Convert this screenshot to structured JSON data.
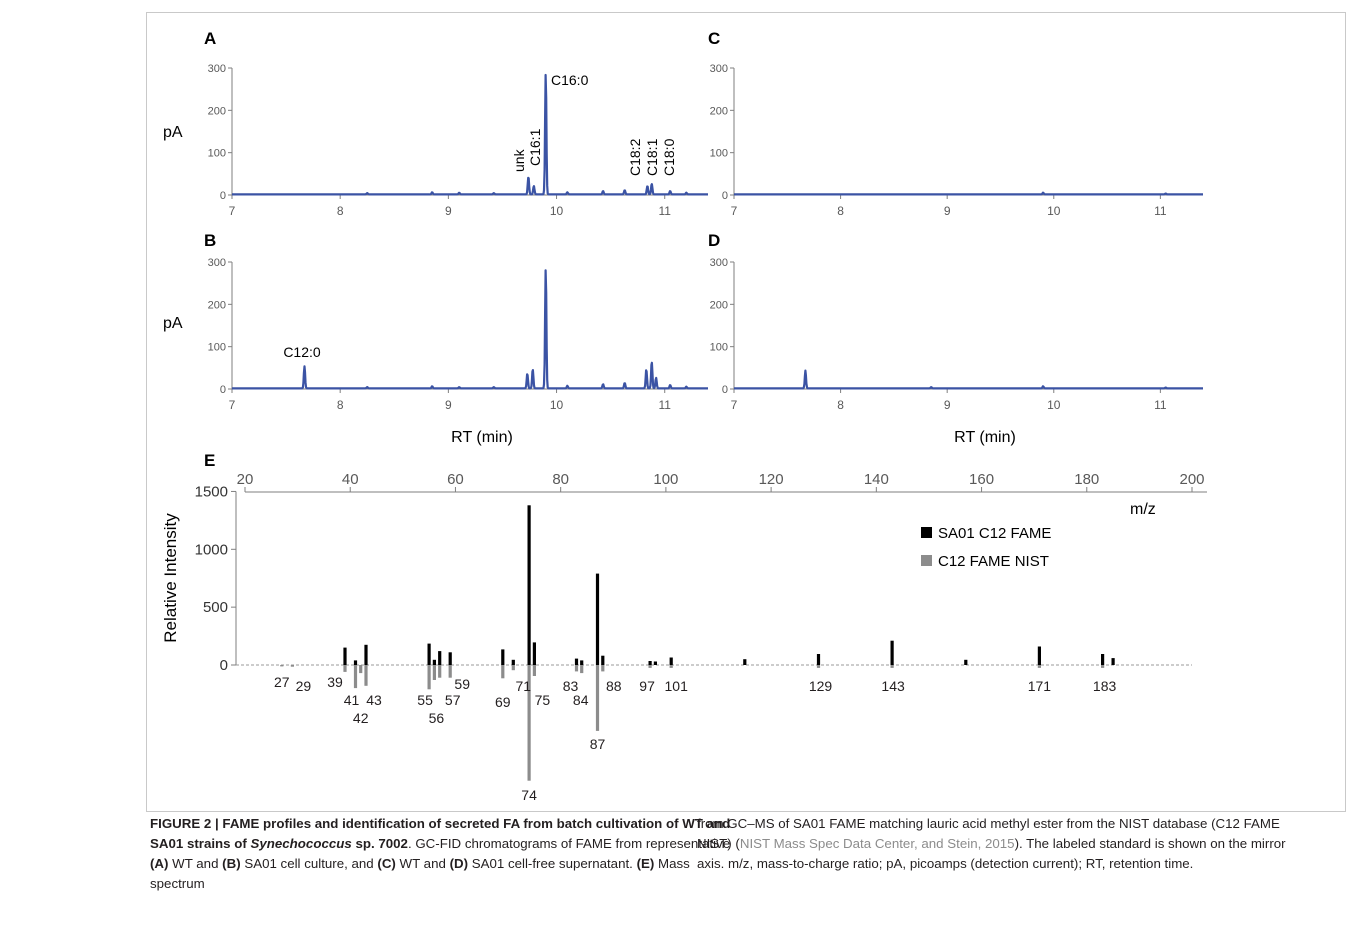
{
  "panels": {
    "A": {
      "letter": "A"
    },
    "B": {
      "letter": "B"
    },
    "C": {
      "letter": "C"
    },
    "D": {
      "letter": "D"
    },
    "E": {
      "letter": "E"
    }
  },
  "axis_labels": {
    "pA": "pA",
    "rt": "RT (min)",
    "relative_intensity": "Relative Intensity",
    "mz": "m/z"
  },
  "peak_labels": {
    "unk": "unk",
    "c16_1": "C16:1",
    "c16_0": "C16:0",
    "c18_2": "C18:2",
    "c18_1": "C18:1",
    "c18_0": "C18:0",
    "c12_0": "C12:0"
  },
  "colors": {
    "chromatogram": "#3b53a4",
    "sample_bars": "#000000",
    "nist_bars": "#8c8c8c",
    "axis": "#7f7f7f",
    "citation": "#8c8c8c"
  },
  "chart_data": [
    {
      "type": "line",
      "panel": "A",
      "xlabel": "",
      "ylabel": "pA",
      "xlim": [
        7,
        11.4
      ],
      "ylim": [
        0,
        300
      ],
      "xticks": [
        7,
        8,
        9,
        10,
        11
      ],
      "yticks": [
        0,
        100,
        200,
        300
      ],
      "peaks": [
        {
          "rt": 8.25,
          "height": 3
        },
        {
          "rt": 8.85,
          "height": 5
        },
        {
          "rt": 9.1,
          "height": 4
        },
        {
          "rt": 9.42,
          "height": 3
        },
        {
          "rt": 9.74,
          "height": 42
        },
        {
          "rt": 9.79,
          "height": 20
        },
        {
          "rt": 9.9,
          "height": 285
        },
        {
          "rt": 10.1,
          "height": 5
        },
        {
          "rt": 10.43,
          "height": 8
        },
        {
          "rt": 10.63,
          "height": 10
        },
        {
          "rt": 10.84,
          "height": 20
        },
        {
          "rt": 10.88,
          "height": 25
        },
        {
          "rt": 11.05,
          "height": 8
        },
        {
          "rt": 11.2,
          "height": 4
        }
      ],
      "annotations": [
        {
          "key": "unk",
          "rt": 9.74
        },
        {
          "key": "c16_1",
          "rt": 9.79
        },
        {
          "key": "c16_0",
          "rt": 9.9
        },
        {
          "key": "c18_2",
          "rt": 10.84
        },
        {
          "key": "c18_1",
          "rt": 10.88
        },
        {
          "key": "c18_0",
          "rt": 11.05
        }
      ]
    },
    {
      "type": "line",
      "panel": "B",
      "xlabel": "RT (min)",
      "ylabel": "pA",
      "xlim": [
        7,
        11.4
      ],
      "ylim": [
        0,
        300
      ],
      "xticks": [
        7,
        8,
        9,
        10,
        11
      ],
      "yticks": [
        0,
        100,
        200,
        300
      ],
      "peaks": [
        {
          "rt": 7.67,
          "height": 52
        },
        {
          "rt": 8.25,
          "height": 3
        },
        {
          "rt": 8.85,
          "height": 5
        },
        {
          "rt": 9.1,
          "height": 3
        },
        {
          "rt": 9.42,
          "height": 3
        },
        {
          "rt": 9.73,
          "height": 35
        },
        {
          "rt": 9.78,
          "height": 45
        },
        {
          "rt": 9.9,
          "height": 282
        },
        {
          "rt": 10.1,
          "height": 6
        },
        {
          "rt": 10.43,
          "height": 10
        },
        {
          "rt": 10.63,
          "height": 13
        },
        {
          "rt": 10.83,
          "height": 45
        },
        {
          "rt": 10.88,
          "height": 63
        },
        {
          "rt": 10.92,
          "height": 25
        },
        {
          "rt": 11.05,
          "height": 8
        },
        {
          "rt": 11.2,
          "height": 4
        }
      ],
      "annotations": [
        {
          "key": "c12_0",
          "rt": 7.67
        }
      ]
    },
    {
      "type": "line",
      "panel": "C",
      "xlabel": "",
      "ylabel": "",
      "xlim": [
        7,
        11.4
      ],
      "ylim": [
        0,
        300
      ],
      "xticks": [
        7,
        8,
        9,
        10,
        11
      ],
      "yticks": [
        0,
        100,
        200,
        300
      ],
      "peaks": [
        {
          "rt": 9.9,
          "height": 4
        },
        {
          "rt": 11.05,
          "height": 2
        }
      ]
    },
    {
      "type": "line",
      "panel": "D",
      "xlabel": "RT (min)",
      "ylabel": "",
      "xlim": [
        7,
        11.4
      ],
      "ylim": [
        0,
        300
      ],
      "xticks": [
        7,
        8,
        9,
        10,
        11
      ],
      "yticks": [
        0,
        100,
        200,
        300
      ],
      "peaks": [
        {
          "rt": 7.67,
          "height": 42
        },
        {
          "rt": 8.85,
          "height": 3
        },
        {
          "rt": 9.9,
          "height": 5
        },
        {
          "rt": 11.05,
          "height": 2
        }
      ]
    },
    {
      "type": "bar",
      "panel": "E",
      "xlabel": "m/z",
      "ylabel": "Relative Intensity",
      "xlim": [
        20,
        200
      ],
      "ylim": [
        -1000,
        1500
      ],
      "xticks": [
        20,
        40,
        60,
        80,
        100,
        120,
        140,
        160,
        180,
        200
      ],
      "yticks": [
        0,
        500,
        1000,
        1500
      ],
      "series": [
        {
          "name": "SA01 C12 FAME",
          "x": [
            39,
            41,
            43,
            55,
            56,
            57,
            59,
            69,
            71,
            74,
            75,
            83,
            84,
            87,
            88,
            97,
            98,
            101,
            115,
            129,
            143,
            157,
            171,
            183,
            185
          ],
          "values": [
            150,
            40,
            175,
            185,
            45,
            120,
            110,
            135,
            45,
            1380,
            195,
            55,
            40,
            790,
            80,
            35,
            30,
            65,
            50,
            95,
            210,
            45,
            160,
            95,
            60
          ]
        },
        {
          "name": "C12 FAME NIST",
          "x": [
            27,
            29,
            39,
            41,
            42,
            43,
            55,
            56,
            57,
            59,
            69,
            71,
            74,
            75,
            83,
            84,
            87,
            88,
            97,
            101,
            129,
            143,
            171,
            183
          ],
          "values": [
            -12,
            -15,
            -60,
            -200,
            -70,
            -180,
            -210,
            -130,
            -110,
            -110,
            -115,
            -45,
            -1000,
            -95,
            -55,
            -70,
            -570,
            -55,
            -25,
            -25,
            -25,
            -25,
            -25,
            -25
          ]
        }
      ],
      "peak_labels": [
        {
          "text": "27",
          "x": 27
        },
        {
          "text": "29",
          "x": 29
        },
        {
          "text": "39",
          "x": 39
        },
        {
          "text": "41",
          "x": 41
        },
        {
          "text": "43",
          "x": 43
        },
        {
          "text": "42",
          "x": 42
        },
        {
          "text": "55",
          "x": 55
        },
        {
          "text": "57",
          "x": 57
        },
        {
          "text": "56",
          "x": 56
        },
        {
          "text": "59",
          "x": 59
        },
        {
          "text": "69",
          "x": 69
        },
        {
          "text": "71",
          "x": 71
        },
        {
          "text": "75",
          "x": 75
        },
        {
          "text": "74",
          "x": 74
        },
        {
          "text": "83",
          "x": 83
        },
        {
          "text": "84",
          "x": 84
        },
        {
          "text": "88",
          "x": 88
        },
        {
          "text": "87",
          "x": 87
        },
        {
          "text": "97",
          "x": 97
        },
        {
          "text": "101",
          "x": 101
        },
        {
          "text": "129",
          "x": 129
        },
        {
          "text": "143",
          "x": 143
        },
        {
          "text": "171",
          "x": 171
        },
        {
          "text": "183",
          "x": 183
        }
      ],
      "legend": "top-right"
    }
  ],
  "caption": {
    "left": {
      "title_a": "FIGURE 2 | FAME profiles and identification of secreted FA from batch cultivation of WT and SA01 strains of ",
      "title_italic": "Synechococcus",
      "title_b": " sp. 7002",
      "t1": ". GC-FID chromatograms of FAME from representative ",
      "ref_a": "(A)",
      "t2": " WT and ",
      "ref_b": "(B)",
      "t3": " SA01 cell culture, and ",
      "ref_c": "(C)",
      "t4": " WT and ",
      "ref_d": "(D)",
      "t5": " SA01 cell-free supernatant. ",
      "ref_e": "(E)",
      "t6": " Mass spectrum"
    },
    "right": {
      "t1": "from GC–MS of SA01 FAME matching lauric acid methyl ester from the NIST database (C12 FAME NIST) (",
      "citation": "NIST Mass Spec Data Center, and Stein, 2015",
      "t2": "). The labeled standard is shown on the mirror axis. m/z, mass-to-charge ratio; pA, picoamps (detection current); RT, retention time."
    }
  }
}
